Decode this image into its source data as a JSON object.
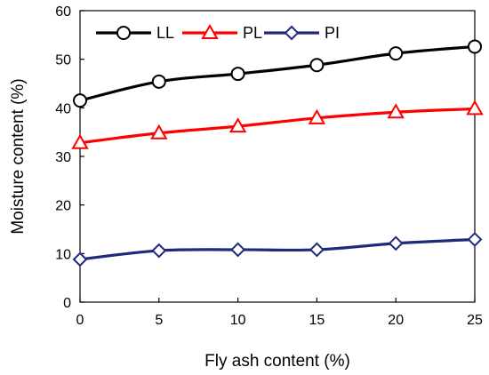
{
  "chart_data": {
    "type": "line",
    "xlabel": "Fly ash content (%)",
    "ylabel": "Moisture content (%)",
    "xlim": [
      0,
      25
    ],
    "ylim": [
      0,
      60
    ],
    "x_ticks": [
      0,
      5,
      10,
      15,
      20,
      25
    ],
    "y_ticks": [
      0,
      10,
      20,
      30,
      40,
      50,
      60
    ],
    "x": [
      0,
      5,
      10,
      15,
      20,
      25
    ],
    "grid": false,
    "legend_position": "top-left",
    "series": [
      {
        "name": "LL",
        "values": [
          41.5,
          45.4,
          47.0,
          48.8,
          51.2,
          52.6
        ],
        "color": "#000000",
        "marker": "circle"
      },
      {
        "name": "PL",
        "values": [
          32.8,
          34.8,
          36.2,
          37.9,
          39.1,
          39.8
        ],
        "color": "#ff0000",
        "marker": "triangle"
      },
      {
        "name": "PI",
        "values": [
          8.8,
          10.6,
          10.8,
          10.8,
          12.1,
          12.9
        ],
        "color": "#1f2a7a",
        "marker": "diamond"
      }
    ]
  }
}
